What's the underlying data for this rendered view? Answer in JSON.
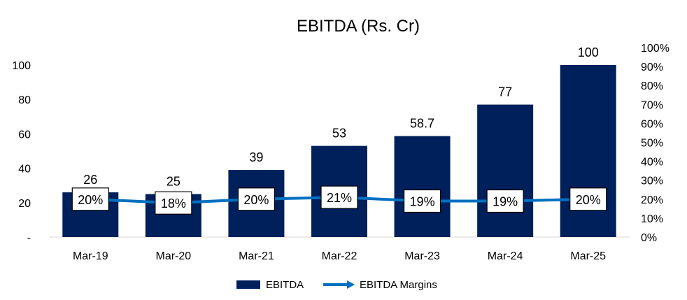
{
  "chart_data": {
    "type": "bar",
    "title": "EBITDA (Rs. Cr)",
    "categories": [
      "Mar-19",
      "Mar-20",
      "Mar-21",
      "Mar-22",
      "Mar-23",
      "Mar-24",
      "Mar-25"
    ],
    "series": [
      {
        "name": "EBITDA",
        "type": "bar",
        "axis": "left",
        "values": [
          26,
          25,
          39,
          53,
          58.7,
          77,
          100
        ],
        "labels": [
          "26",
          "25",
          "39",
          "53",
          "58.7",
          "77",
          "100"
        ]
      },
      {
        "name": "EBITDA Margins",
        "type": "line",
        "axis": "right",
        "values": [
          20,
          18,
          20,
          21,
          19,
          19,
          20
        ],
        "labels": [
          "20%",
          "18%",
          "20%",
          "21%",
          "19%",
          "19%",
          "20%"
        ]
      }
    ],
    "y_left": {
      "ylim": [
        0,
        110
      ],
      "ticks": [
        0,
        20,
        40,
        60,
        80,
        100
      ],
      "tick_labels": [
        "-",
        "20",
        "40",
        "60",
        "80",
        "100"
      ]
    },
    "y_right": {
      "ylim": [
        0,
        100
      ],
      "ticks": [
        0,
        10,
        20,
        30,
        40,
        50,
        60,
        70,
        80,
        90,
        100
      ],
      "tick_labels": [
        "0%",
        "10%",
        "20%",
        "30%",
        "40%",
        "50%",
        "60%",
        "70%",
        "80%",
        "90%",
        "100%"
      ]
    },
    "grid": false,
    "legend_position": "bottom-center",
    "colors": {
      "bar": "#00205b",
      "line": "#0070c0",
      "axis": "#d9d9d9"
    }
  }
}
